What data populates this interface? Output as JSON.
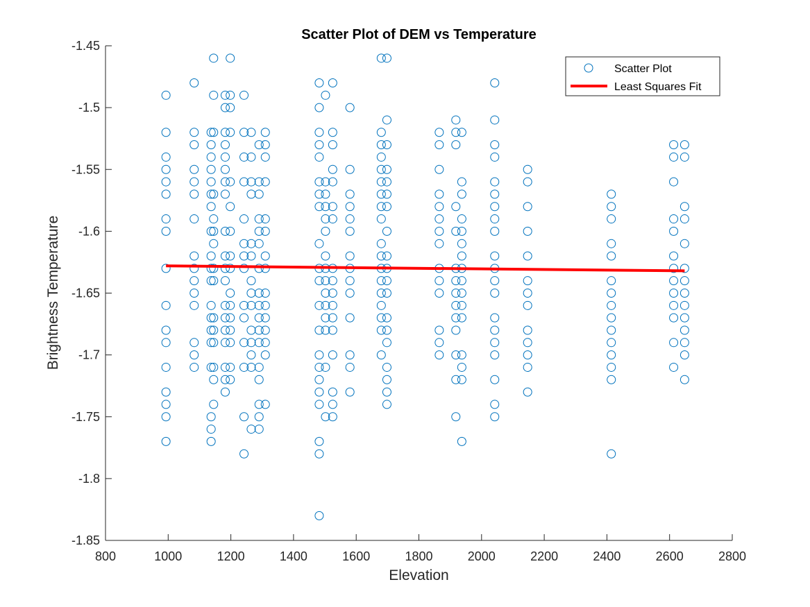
{
  "chart_data": {
    "type": "scatter",
    "title": "Scatter Plot of DEM vs Temperature",
    "xlabel": "Elevation",
    "ylabel": "Brightness Temperature",
    "xlim": [
      800,
      2800
    ],
    "ylim": [
      -1.85,
      -1.45
    ],
    "xticks": [
      800,
      1000,
      1200,
      1400,
      1600,
      1800,
      2000,
      2200,
      2400,
      2600,
      2800
    ],
    "yticks": [
      -1.45,
      -1.5,
      -1.55,
      -1.6,
      -1.65,
      -1.7,
      -1.75,
      -1.8,
      -1.85
    ],
    "grid": false,
    "legend_position": "top-right",
    "colors": {
      "scatter": "#0072BD",
      "fit": "#FF0000",
      "axes": "#262626"
    },
    "series": [
      {
        "name": "Scatter Plot",
        "kind": "scatter",
        "columns": [
          {
            "x": 993,
            "y": [
              -1.49,
              -1.52,
              -1.54,
              -1.55,
              -1.56,
              -1.57,
              -1.59,
              -1.6,
              -1.63,
              -1.66,
              -1.68,
              -1.69,
              -1.71,
              -1.73,
              -1.74,
              -1.75,
              -1.77
            ]
          },
          {
            "x": 1083,
            "y": [
              -1.48,
              -1.52,
              -1.53,
              -1.55,
              -1.56,
              -1.57,
              -1.59,
              -1.62,
              -1.63,
              -1.64,
              -1.65,
              -1.66,
              -1.69,
              -1.7,
              -1.71
            ]
          },
          {
            "x": 1137,
            "y": [
              -1.52,
              -1.53,
              -1.54,
              -1.55,
              -1.56,
              -1.57,
              -1.58,
              -1.6,
              -1.62,
              -1.63,
              -1.64,
              -1.66,
              -1.67,
              -1.68,
              -1.69,
              -1.71,
              -1.75,
              -1.76,
              -1.77
            ]
          },
          {
            "x": 1145,
            "y": [
              -1.46,
              -1.49,
              -1.52,
              -1.57,
              -1.59,
              -1.6,
              -1.61,
              -1.63,
              -1.64,
              -1.67,
              -1.68,
              -1.69,
              -1.71,
              -1.72,
              -1.74
            ]
          },
          {
            "x": 1182,
            "y": [
              -1.49,
              -1.5,
              -1.52,
              -1.53,
              -1.54,
              -1.55,
              -1.56,
              -1.57,
              -1.6,
              -1.62,
              -1.63,
              -1.64,
              -1.66,
              -1.67,
              -1.68,
              -1.69,
              -1.71,
              -1.72,
              -1.73
            ]
          },
          {
            "x": 1198,
            "y": [
              -1.46,
              -1.49,
              -1.5,
              -1.52,
              -1.56,
              -1.58,
              -1.6,
              -1.62,
              -1.63,
              -1.65,
              -1.66,
              -1.67,
              -1.68,
              -1.69,
              -1.71,
              -1.72
            ]
          },
          {
            "x": 1242,
            "y": [
              -1.49,
              -1.52,
              -1.54,
              -1.56,
              -1.59,
              -1.61,
              -1.62,
              -1.63,
              -1.66,
              -1.67,
              -1.69,
              -1.71,
              -1.75,
              -1.78
            ]
          },
          {
            "x": 1265,
            "y": [
              -1.52,
              -1.54,
              -1.56,
              -1.57,
              -1.61,
              -1.62,
              -1.64,
              -1.65,
              -1.66,
              -1.68,
              -1.69,
              -1.7,
              -1.71,
              -1.76
            ]
          },
          {
            "x": 1290,
            "y": [
              -1.53,
              -1.56,
              -1.57,
              -1.59,
              -1.6,
              -1.61,
              -1.63,
              -1.65,
              -1.66,
              -1.67,
              -1.68,
              -1.69,
              -1.71,
              -1.72,
              -1.74,
              -1.75,
              -1.76
            ]
          },
          {
            "x": 1310,
            "y": [
              -1.52,
              -1.53,
              -1.54,
              -1.56,
              -1.59,
              -1.6,
              -1.62,
              -1.63,
              -1.65,
              -1.66,
              -1.67,
              -1.68,
              -1.69,
              -1.7,
              -1.74
            ]
          },
          {
            "x": 1482,
            "y": [
              -1.48,
              -1.5,
              -1.52,
              -1.53,
              -1.54,
              -1.56,
              -1.57,
              -1.58,
              -1.61,
              -1.63,
              -1.64,
              -1.66,
              -1.68,
              -1.7,
              -1.71,
              -1.72,
              -1.73,
              -1.74,
              -1.77,
              -1.78,
              -1.83
            ]
          },
          {
            "x": 1502,
            "y": [
              -1.49,
              -1.56,
              -1.57,
              -1.58,
              -1.59,
              -1.6,
              -1.62,
              -1.63,
              -1.64,
              -1.65,
              -1.66,
              -1.67,
              -1.68,
              -1.71,
              -1.75
            ]
          },
          {
            "x": 1525,
            "y": [
              -1.48,
              -1.52,
              -1.53,
              -1.55,
              -1.56,
              -1.58,
              -1.59,
              -1.63,
              -1.64,
              -1.65,
              -1.66,
              -1.67,
              -1.68,
              -1.7,
              -1.73,
              -1.74,
              -1.75
            ]
          },
          {
            "x": 1580,
            "y": [
              -1.5,
              -1.55,
              -1.57,
              -1.58,
              -1.59,
              -1.6,
              -1.62,
              -1.63,
              -1.64,
              -1.65,
              -1.67,
              -1.7,
              -1.71,
              -1.73
            ]
          },
          {
            "x": 1680,
            "y": [
              -1.46,
              -1.52,
              -1.53,
              -1.54,
              -1.55,
              -1.56,
              -1.57,
              -1.58,
              -1.59,
              -1.61,
              -1.62,
              -1.63,
              -1.64,
              -1.65,
              -1.66,
              -1.67,
              -1.68,
              -1.7
            ]
          },
          {
            "x": 1698,
            "y": [
              -1.46,
              -1.51,
              -1.53,
              -1.55,
              -1.56,
              -1.57,
              -1.58,
              -1.6,
              -1.62,
              -1.63,
              -1.64,
              -1.65,
              -1.67,
              -1.68,
              -1.69,
              -1.71,
              -1.72,
              -1.73,
              -1.74
            ]
          },
          {
            "x": 1865,
            "y": [
              -1.52,
              -1.53,
              -1.55,
              -1.57,
              -1.58,
              -1.59,
              -1.6,
              -1.61,
              -1.63,
              -1.64,
              -1.65,
              -1.68,
              -1.69,
              -1.7
            ]
          },
          {
            "x": 1918,
            "y": [
              -1.51,
              -1.52,
              -1.53,
              -1.58,
              -1.6,
              -1.63,
              -1.64,
              -1.65,
              -1.66,
              -1.67,
              -1.68,
              -1.7,
              -1.72,
              -1.75
            ]
          },
          {
            "x": 1937,
            "y": [
              -1.52,
              -1.56,
              -1.57,
              -1.59,
              -1.6,
              -1.61,
              -1.62,
              -1.63,
              -1.64,
              -1.65,
              -1.66,
              -1.67,
              -1.7,
              -1.71,
              -1.72,
              -1.77
            ]
          },
          {
            "x": 2042,
            "y": [
              -1.48,
              -1.51,
              -1.53,
              -1.54,
              -1.56,
              -1.57,
              -1.58,
              -1.59,
              -1.6,
              -1.62,
              -1.63,
              -1.64,
              -1.65,
              -1.67,
              -1.68,
              -1.69,
              -1.7,
              -1.72,
              -1.74,
              -1.75
            ]
          },
          {
            "x": 2147,
            "y": [
              -1.55,
              -1.56,
              -1.58,
              -1.6,
              -1.62,
              -1.64,
              -1.65,
              -1.66,
              -1.68,
              -1.69,
              -1.7,
              -1.71,
              -1.73
            ]
          },
          {
            "x": 2414,
            "y": [
              -1.57,
              -1.58,
              -1.59,
              -1.61,
              -1.62,
              -1.64,
              -1.65,
              -1.66,
              -1.67,
              -1.68,
              -1.69,
              -1.7,
              -1.71,
              -1.72,
              -1.78
            ]
          },
          {
            "x": 2613,
            "y": [
              -1.53,
              -1.54,
              -1.56,
              -1.59,
              -1.6,
              -1.62,
              -1.63,
              -1.64,
              -1.65,
              -1.66,
              -1.67,
              -1.69,
              -1.71
            ]
          },
          {
            "x": 2648,
            "y": [
              -1.53,
              -1.54,
              -1.58,
              -1.59,
              -1.61,
              -1.63,
              -1.64,
              -1.65,
              -1.66,
              -1.67,
              -1.68,
              -1.69,
              -1.7,
              -1.72
            ]
          }
        ]
      },
      {
        "name": "Least Squares Fit",
        "kind": "line",
        "x": [
          993,
          2648
        ],
        "y": [
          -1.628,
          -1.632
        ]
      }
    ]
  }
}
